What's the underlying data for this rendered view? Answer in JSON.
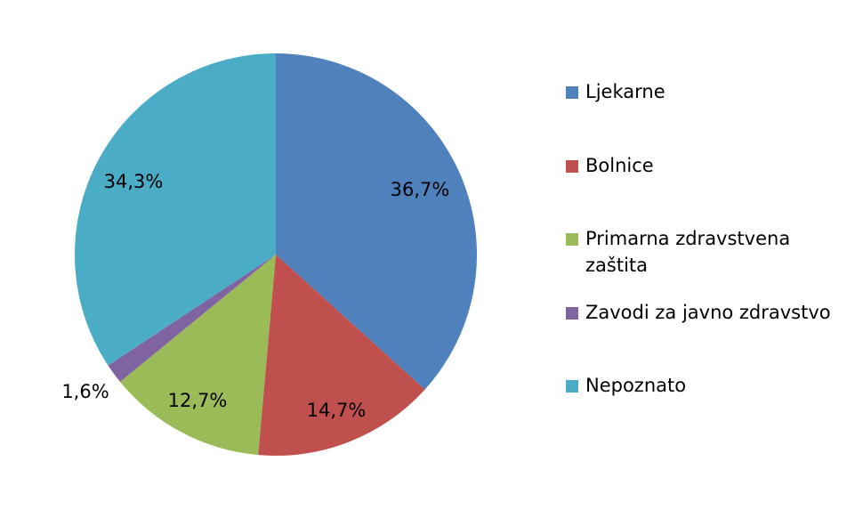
{
  "chart_data": {
    "type": "pie",
    "title": "",
    "slices": [
      {
        "label": "Ljekarne",
        "value": 36.7,
        "display": "36,7%",
        "color": "#4F81BD"
      },
      {
        "label": "Bolnice",
        "value": 14.7,
        "display": "14,7%",
        "color": "#C0504D"
      },
      {
        "label": "Primarna zdravstvena zaštita",
        "value": 12.7,
        "display": "12,7%",
        "color": "#9BBB59"
      },
      {
        "label": "Zavodi za javno zdravstvo",
        "value": 1.6,
        "display": "1,6%",
        "color": "#8064A2"
      },
      {
        "label": "Nepoznato",
        "value": 34.3,
        "display": "34,3%",
        "color": "#4BACC6"
      }
    ],
    "start_angle": "12 o'clock",
    "direction": "clockwise",
    "legend_position": "right"
  }
}
